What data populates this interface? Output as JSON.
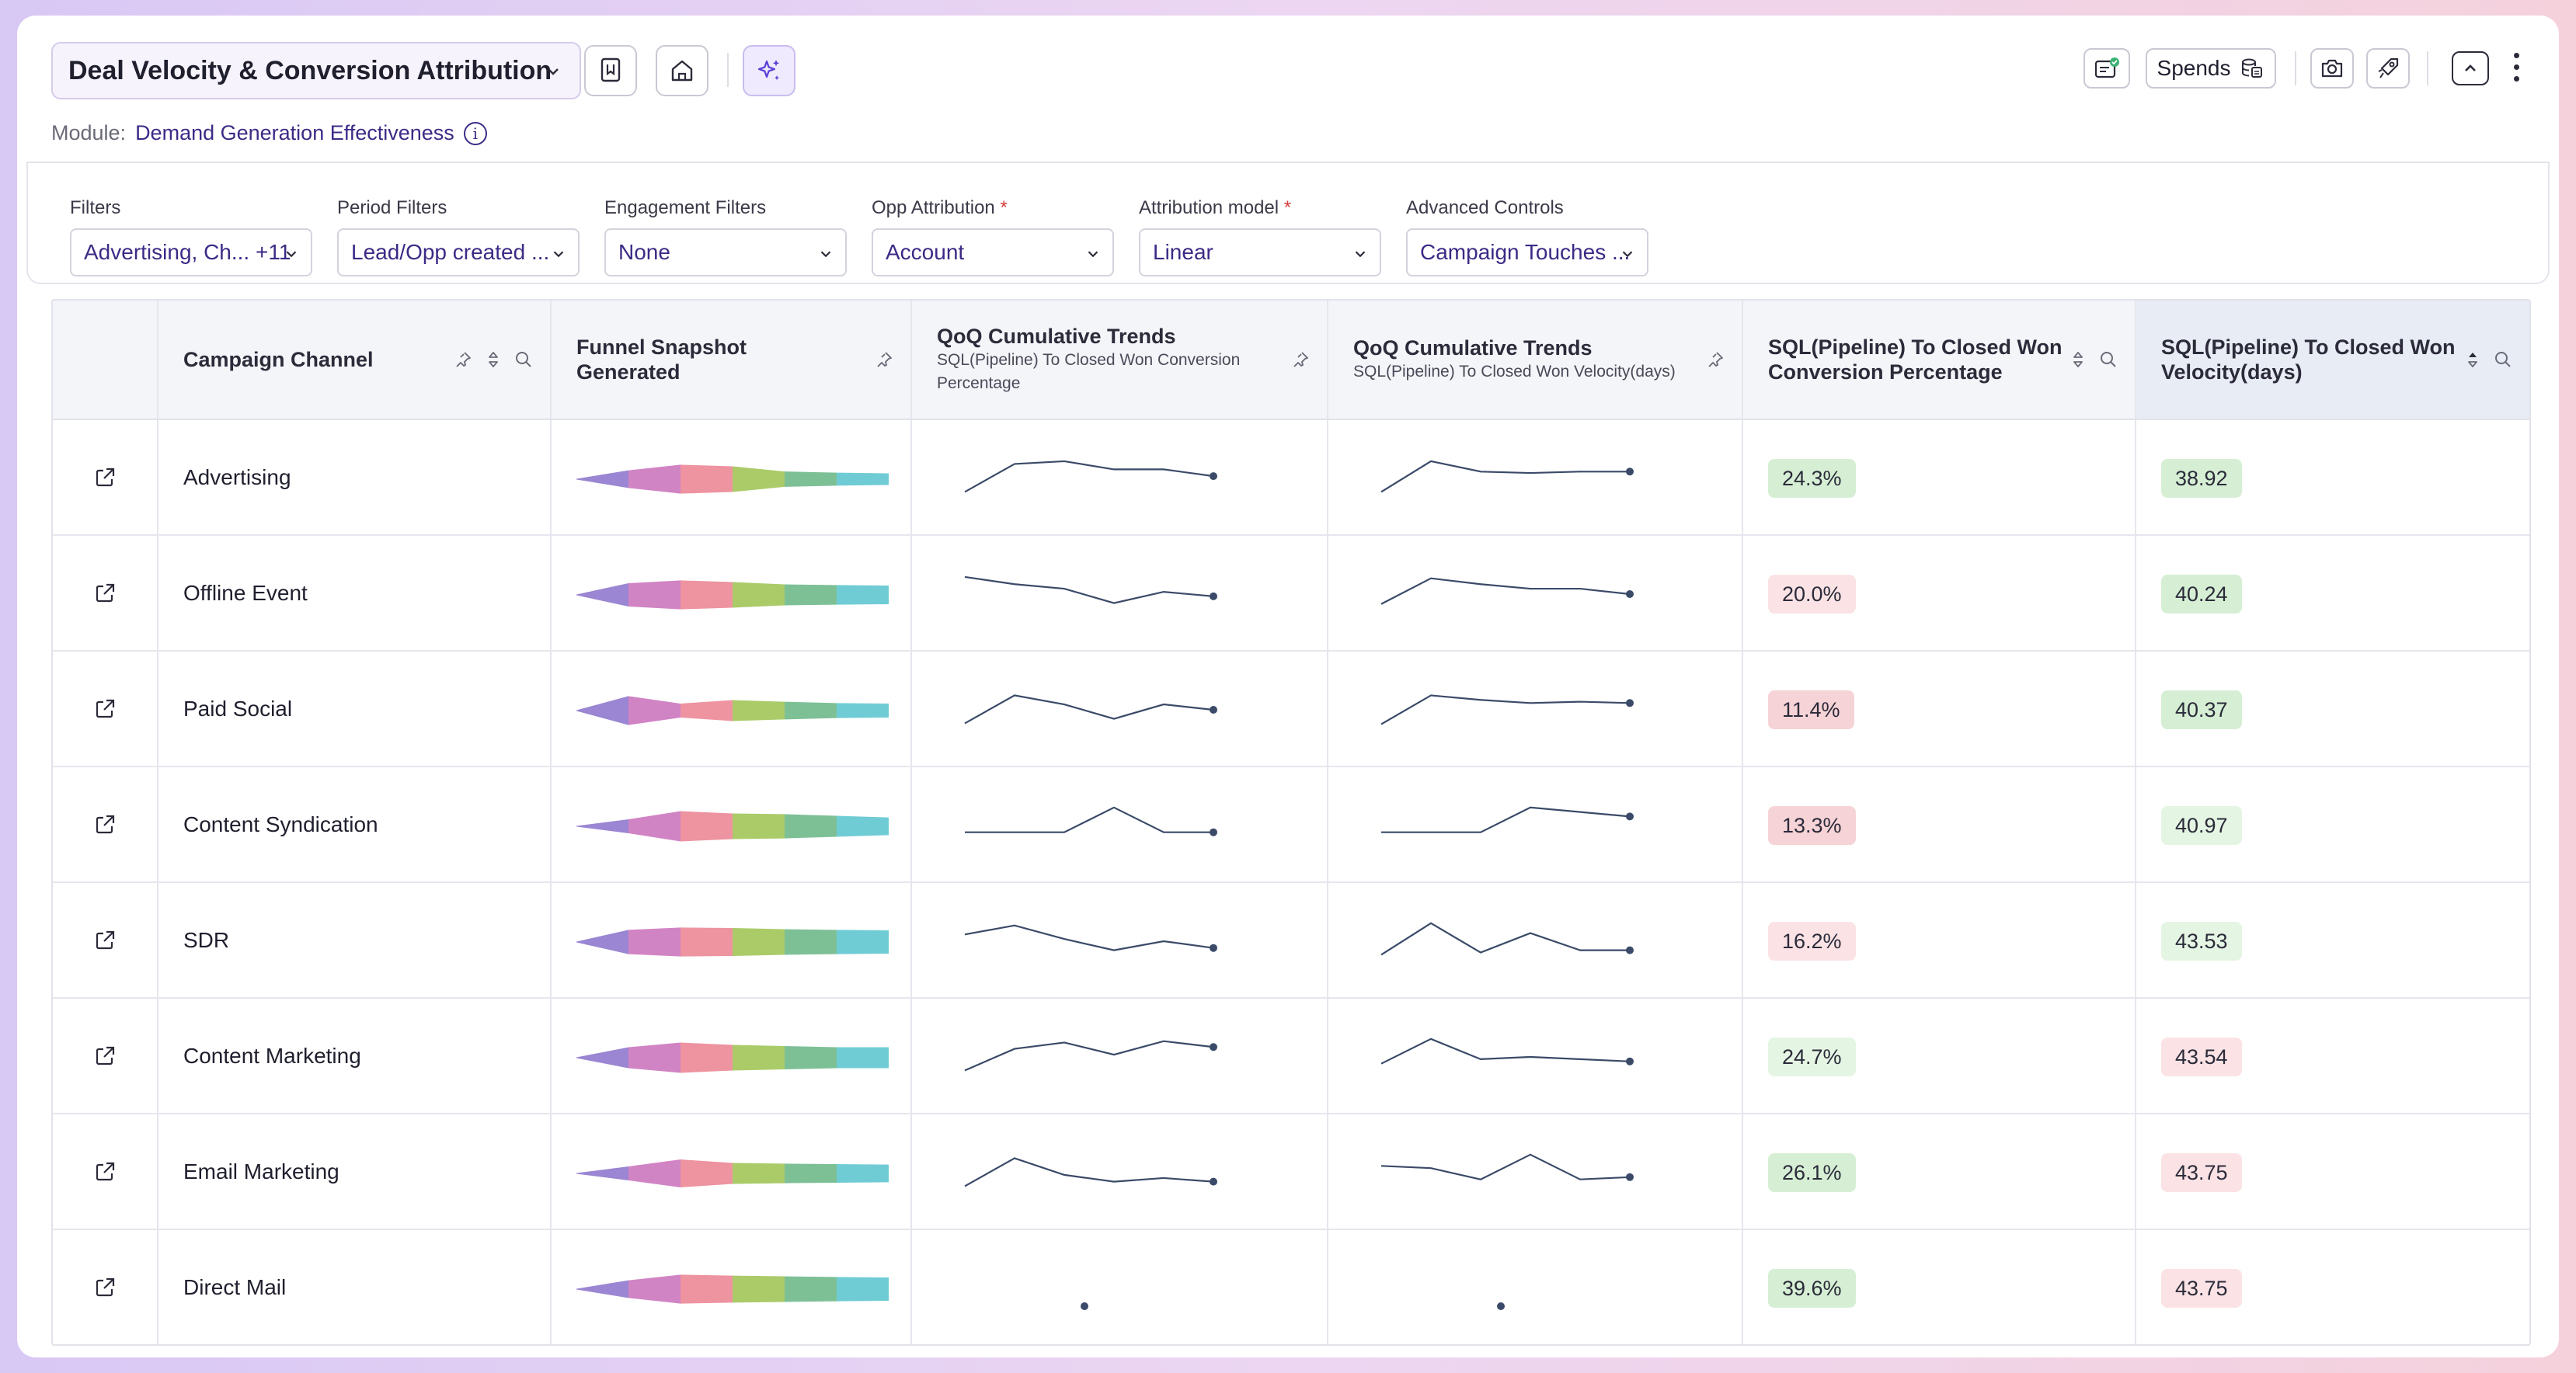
{
  "header": {
    "report_title": "Deal Velocity & Conversion Attribution",
    "module_label": "Module:",
    "module_value": "Demand Generation Effectiveness",
    "spends_label": "Spends"
  },
  "filters": [
    {
      "label": "Filters",
      "required": false,
      "value": "Advertising, Ch... +11"
    },
    {
      "label": "Period Filters",
      "required": false,
      "value": "Lead/Opp created ..."
    },
    {
      "label": "Engagement Filters",
      "required": false,
      "value": "None"
    },
    {
      "label": "Opp Attribution",
      "required": true,
      "value": "Account"
    },
    {
      "label": "Attribution model",
      "required": true,
      "value": "Linear"
    },
    {
      "label": "Advanced Controls",
      "required": false,
      "value": "Campaign Touches ..."
    }
  ],
  "table": {
    "columns": {
      "channel": "Campaign Channel",
      "funnel": "Funnel Snapshot Generated",
      "trend1_title": "QoQ Cumulative Trends",
      "trend1_sub": "SQL(Pipeline) To Closed Won Conversion Percentage",
      "trend2_title": "QoQ Cumulative Trends",
      "trend2_sub": "SQL(Pipeline) To Closed Won Velocity(days)",
      "conv": "SQL(Pipeline) To Closed Won Conversion Percentage",
      "vel": "SQL(Pipeline) To Closed Won Velocity(days)"
    },
    "funnel_colors": [
      "#9a86d2",
      "#d184c4",
      "#ee93a0",
      "#aacb68",
      "#7ec096",
      "#70ccd4"
    ],
    "status_colors": {
      "good": "#d6efd4",
      "light_good": "#e5f5e3",
      "bad": "#f6d3d6",
      "light_bad": "#fbe3e5"
    },
    "rows": [
      {
        "channel": "Advertising",
        "funnel": [
          0.38,
          0.62,
          0.55,
          0.33,
          0.28,
          0.25
        ],
        "trend1": [
          0.2,
          0.82,
          0.88,
          0.7,
          0.7,
          0.55
        ],
        "trend2": [
          0.2,
          0.88,
          0.65,
          0.62,
          0.65,
          0.65
        ],
        "conv": "24.3%",
        "conv_status": "good",
        "vel": "38.92",
        "vel_status": "good"
      },
      {
        "channel": "Offline Event",
        "funnel": [
          0.5,
          0.62,
          0.55,
          0.45,
          0.42,
          0.4
        ],
        "trend1": [
          0.88,
          0.72,
          0.62,
          0.3,
          0.55,
          0.45
        ],
        "trend2": [
          0.28,
          0.85,
          0.72,
          0.62,
          0.62,
          0.5
        ],
        "conv": "20.0%",
        "conv_status": "light_bad",
        "vel": "40.24",
        "vel_status": "good"
      },
      {
        "channel": "Paid Social",
        "funnel": [
          0.62,
          0.3,
          0.45,
          0.38,
          0.32,
          0.3
        ],
        "trend1": [
          0.2,
          0.82,
          0.62,
          0.3,
          0.62,
          0.5
        ],
        "trend2": [
          0.18,
          0.82,
          0.72,
          0.65,
          0.68,
          0.65
        ],
        "conv": "11.4%",
        "conv_status": "bad",
        "vel": "40.37",
        "vel_status": "good"
      },
      {
        "channel": "Content Syndication",
        "funnel": [
          0.3,
          0.65,
          0.55,
          0.52,
          0.45,
          0.38
        ],
        "trend1": [
          0.35,
          0.35,
          0.35,
          0.9,
          0.35,
          0.35
        ],
        "trend2": [
          0.35,
          0.35,
          0.35,
          0.9,
          0.8,
          0.7
        ],
        "conv": "13.3%",
        "conv_status": "bad",
        "vel": "40.97",
        "vel_status": "light_good"
      },
      {
        "channel": "SDR",
        "funnel": [
          0.52,
          0.62,
          0.6,
          0.55,
          0.52,
          0.5
        ],
        "trend1": [
          0.65,
          0.85,
          0.55,
          0.3,
          0.5,
          0.35
        ],
        "trend2": [
          0.2,
          0.9,
          0.25,
          0.68,
          0.3,
          0.3
        ],
        "conv": "16.2%",
        "conv_status": "light_bad",
        "vel": "43.53",
        "vel_status": "light_good"
      },
      {
        "channel": "Content Marketing",
        "funnel": [
          0.45,
          0.65,
          0.55,
          0.5,
          0.45,
          0.45
        ],
        "trend1": [
          0.2,
          0.68,
          0.82,
          0.55,
          0.85,
          0.72
        ],
        "trend2": [
          0.35,
          0.9,
          0.45,
          0.5,
          0.45,
          0.4
        ],
        "conv": "24.7%",
        "conv_status": "light_good",
        "vel": "43.54",
        "vel_status": "light_bad"
      },
      {
        "channel": "Email Marketing",
        "funnel": [
          0.3,
          0.6,
          0.45,
          0.42,
          0.4,
          0.38
        ],
        "trend1": [
          0.2,
          0.82,
          0.45,
          0.3,
          0.38,
          0.3
        ],
        "trend2": [
          0.65,
          0.6,
          0.35,
          0.9,
          0.35,
          0.4
        ],
        "conv": "26.1%",
        "conv_status": "good",
        "vel": "43.75",
        "vel_status": "light_bad"
      },
      {
        "channel": "Direct Mail",
        "funnel": [
          0.38,
          0.62,
          0.58,
          0.55,
          0.52,
          0.5
        ],
        "trend1": [],
        "trend2": [],
        "conv": "39.6%",
        "conv_status": "good",
        "vel": "43.75",
        "vel_status": "light_bad"
      }
    ]
  }
}
